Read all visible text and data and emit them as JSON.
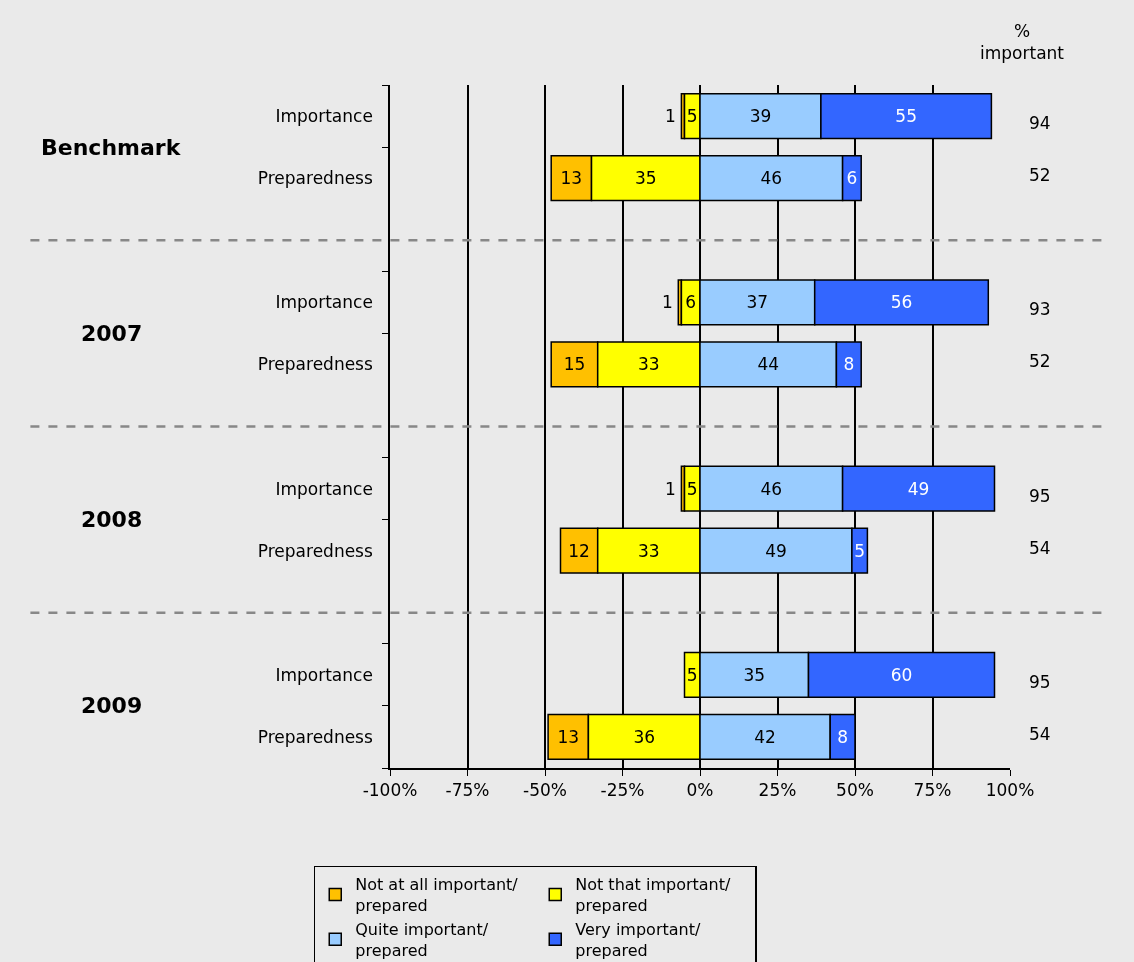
{
  "chart_data": {
    "type": "bar",
    "orientation": "horizontal",
    "categories": [
      "Importance",
      "Preparedness",
      null,
      "Importance",
      "Preparedness",
      null,
      "Importance",
      "Preparedness",
      null,
      "Importance",
      "Preparedness"
    ],
    "series": [
      {
        "name": "Not at all important/prepared",
        "color": "#ffc000",
        "values": [
          1,
          13,
          null,
          1,
          15,
          null,
          1,
          12,
          null,
          null,
          13
        ],
        "base": [
          -6,
          -48,
          null,
          -7,
          -48,
          null,
          -6,
          -45,
          null,
          null,
          -49
        ],
        "data_labels": true
      },
      {
        "name": "Not that important/prepared",
        "color": "#ffff00",
        "values": [
          5,
          35,
          null,
          6,
          33,
          null,
          5,
          33,
          null,
          5,
          36
        ],
        "base": [
          -5,
          -35,
          null,
          -6,
          -33,
          null,
          -5,
          -33,
          null,
          -5,
          -36
        ],
        "data_labels": true
      },
      {
        "name": "Quite important/prepared",
        "color": "#99ccff",
        "values": [
          39,
          46,
          null,
          37,
          44,
          null,
          46,
          49,
          null,
          35,
          42
        ],
        "base": [
          0,
          0,
          null,
          0,
          0,
          null,
          0,
          0,
          null,
          0,
          0
        ],
        "data_labels": true
      },
      {
        "name": "Very important/prepared",
        "color": "#3366ff",
        "values": [
          55,
          6,
          null,
          56,
          8,
          null,
          49,
          5,
          null,
          60,
          8
        ],
        "base": [
          39,
          46,
          null,
          37,
          44,
          null,
          46,
          49,
          null,
          35,
          42
        ],
        "data_labels": true
      }
    ],
    "xlim": [
      -100,
      100
    ],
    "xticks": [
      {
        "value": -100,
        "label": "-100%"
      },
      {
        "value": -75,
        "label": "-75%"
      },
      {
        "value": -50,
        "label": "-50%"
      },
      {
        "value": -25,
        "label": "-25%"
      },
      {
        "value": 0,
        "label": "0%"
      },
      {
        "value": 25,
        "label": "25%"
      },
      {
        "value": 50,
        "label": "50%"
      },
      {
        "value": 75,
        "label": "75%"
      },
      {
        "value": 100,
        "label": "100%"
      }
    ],
    "grid": "x",
    "legend": "bottom",
    "annotations": [
      "% important",
      "94",
      "52",
      "93",
      "52",
      "95",
      "54",
      "95",
      "54",
      "Benchmark",
      "2007",
      "2008",
      "2009"
    ]
  }
}
